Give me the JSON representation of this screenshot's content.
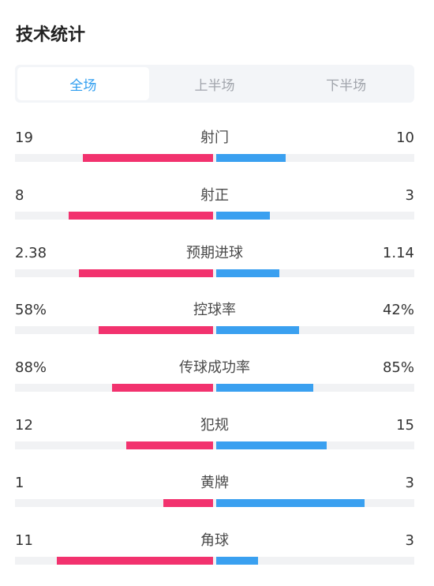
{
  "header": {
    "title": "技术统计"
  },
  "tabs": [
    {
      "label": "全场",
      "active": true
    },
    {
      "label": "上半场",
      "active": false
    },
    {
      "label": "下半场",
      "active": false
    }
  ],
  "colors": {
    "home_bar": "#f2326e",
    "away_bar": "#3aa0f0",
    "active_tab": "#2f9ef0"
  },
  "stats": [
    {
      "label": "射门",
      "left": "19",
      "right": "10",
      "left_fill": 0.66,
      "right_fill": 0.35
    },
    {
      "label": "射正",
      "left": "8",
      "right": "3",
      "left_fill": 0.73,
      "right_fill": 0.27
    },
    {
      "label": "预期进球",
      "left": "2.38",
      "right": "1.14",
      "left_fill": 0.68,
      "right_fill": 0.32
    },
    {
      "label": "控球率",
      "left": "58%",
      "right": "42%",
      "left_fill": 0.58,
      "right_fill": 0.42
    },
    {
      "label": "传球成功率",
      "left": "88%",
      "right": "85%",
      "left_fill": 0.51,
      "right_fill": 0.49
    },
    {
      "label": "犯规",
      "left": "12",
      "right": "15",
      "left_fill": 0.44,
      "right_fill": 0.56
    },
    {
      "label": "黄牌",
      "left": "1",
      "right": "3",
      "left_fill": 0.25,
      "right_fill": 0.75
    },
    {
      "label": "角球",
      "left": "11",
      "right": "3",
      "left_fill": 0.79,
      "right_fill": 0.21
    }
  ]
}
